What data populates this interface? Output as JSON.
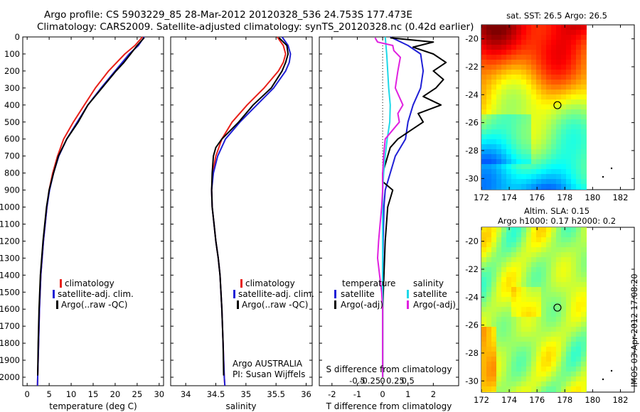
{
  "header": {
    "line1": "Argo profile: CS 5903229_85 28-Mar-2012 20120328_536 24.753S 177.473E",
    "line2": "Climatology: CARS2009. Satellite-adjusted climatology: synTS_20120328.nc (0.42d earlier)"
  },
  "colors": {
    "climatology": "#e8201a",
    "satellite": "#1f1fd6",
    "argo": "#000000",
    "sat_temp": "#1ed8e8",
    "argo_adj_salt": "#e020e0"
  },
  "legends": {
    "temperature": [
      "climatology",
      "satellite-adj. clim.",
      "Argo(..raw -QC)"
    ],
    "salinity": [
      "climatology",
      "satellite-adj. clim.",
      "Argo(..raw -QC)"
    ],
    "difference": {
      "temperature_head": "temperature",
      "salinity_head": "salinity",
      "temperature_items": [
        "satellite",
        "Argo(-adj)"
      ],
      "salinity_items": [
        "satellite",
        "Argo(-adj)"
      ]
    }
  },
  "annotations": {
    "argo_country": "Argo AUSTRALIA",
    "pi": "PI: Susan Wijffels",
    "imos_stamp": "IMOS 03-Apr-2012 17:08:20"
  },
  "maps": {
    "sst_title": "sat. SST: 26.5  Argo: 26.5",
    "sla_title1": "Altim. SLA: 0.15",
    "sla_title2": "Argo h1000: 0.17 h2000: 0.2",
    "xticks": [
      "172",
      "174",
      "176",
      "178",
      "180",
      "182"
    ],
    "yticks": [
      "-20",
      "-22",
      "-24",
      "-26",
      "-28",
      "-30"
    ],
    "float_marker": {
      "lon": 177.47,
      "lat": -24.75
    }
  },
  "chart_data": [
    {
      "type": "line",
      "xlabel": "temperature (deg C)",
      "ylabel": "",
      "xlim": [
        -1,
        31
      ],
      "ylim": [
        2050,
        0
      ],
      "xticks": [
        0,
        5,
        10,
        15,
        20,
        25,
        30
      ],
      "yticks": [
        0,
        100,
        200,
        300,
        400,
        500,
        600,
        700,
        800,
        900,
        1000,
        1100,
        1200,
        1300,
        1400,
        1500,
        1600,
        1700,
        1800,
        1900,
        2000
      ],
      "series": [
        {
          "name": "climatology",
          "depth": [
            0,
            50,
            100,
            200,
            300,
            400,
            500,
            600,
            700,
            800,
            900,
            1000,
            1200,
            1400,
            1600,
            1800,
            2000,
            2050
          ],
          "values": [
            26.2,
            24.5,
            22.2,
            18.5,
            15.5,
            13.0,
            10.5,
            8.3,
            6.9,
            5.8,
            5.0,
            4.5,
            3.7,
            3.1,
            2.8,
            2.6,
            2.4,
            2.35
          ]
        },
        {
          "name": "satellite-adj. clim.",
          "depth": [
            0,
            50,
            100,
            200,
            300,
            400,
            500,
            600,
            700,
            800,
            900,
            1000,
            1200,
            1400,
            1600,
            1800,
            2000,
            2050
          ],
          "values": [
            26.6,
            25.3,
            23.2,
            20.0,
            16.8,
            13.8,
            11.4,
            9.0,
            7.2,
            6.0,
            5.1,
            4.5,
            3.7,
            3.1,
            2.8,
            2.6,
            2.4,
            2.35
          ]
        },
        {
          "name": "Argo(..raw -QC)",
          "depth": [
            5,
            50,
            100,
            150,
            200,
            300,
            400,
            500,
            600,
            700,
            800,
            900,
            1000,
            1200,
            1400,
            1600,
            1800,
            1990
          ],
          "values": [
            26.6,
            25.0,
            23.5,
            22.0,
            20.2,
            17.0,
            13.8,
            11.6,
            9.0,
            7.1,
            6.0,
            5.0,
            4.4,
            3.6,
            3.0,
            2.7,
            2.5,
            2.4
          ]
        }
      ]
    },
    {
      "type": "line",
      "xlabel": "salinity",
      "ylabel": "",
      "xlim": [
        33.75,
        36.1
      ],
      "ylim": [
        2050,
        0
      ],
      "xticks": [
        34,
        34.5,
        35,
        35.5,
        36
      ],
      "series": [
        {
          "name": "climatology",
          "depth": [
            0,
            50,
            100,
            150,
            200,
            300,
            400,
            500,
            600,
            700,
            800,
            900,
            1000,
            1100,
            1200,
            1300,
            1400,
            1600,
            1800,
            2000,
            2050
          ],
          "values": [
            35.52,
            35.62,
            35.66,
            35.62,
            35.54,
            35.3,
            35.02,
            34.77,
            34.6,
            34.5,
            34.45,
            34.43,
            34.44,
            34.47,
            34.5,
            34.54,
            34.57,
            34.6,
            34.62,
            34.64,
            34.65
          ]
        },
        {
          "name": "satellite-adj. clim.",
          "depth": [
            0,
            50,
            100,
            150,
            200,
            300,
            400,
            500,
            600,
            700,
            800,
            900,
            1000,
            1100,
            1200,
            1300,
            1400,
            1600,
            1800,
            2000,
            2050
          ],
          "values": [
            35.6,
            35.7,
            35.74,
            35.72,
            35.66,
            35.46,
            35.18,
            34.9,
            34.66,
            34.53,
            34.46,
            34.43,
            34.44,
            34.47,
            34.5,
            34.54,
            34.57,
            34.6,
            34.62,
            34.64,
            34.65
          ]
        },
        {
          "name": "Argo(..raw -QC)",
          "depth": [
            5,
            50,
            100,
            150,
            200,
            300,
            400,
            500,
            600,
            650,
            700,
            800,
            900,
            1000,
            1100,
            1200,
            1300,
            1400,
            1600,
            1800,
            1990
          ],
          "values": [
            35.55,
            35.68,
            35.7,
            35.66,
            35.6,
            35.42,
            35.12,
            34.88,
            34.6,
            34.5,
            34.46,
            34.44,
            34.43,
            34.44,
            34.47,
            34.5,
            34.54,
            34.57,
            34.6,
            34.62,
            34.63
          ]
        }
      ]
    },
    {
      "type": "line",
      "xlabel": "T difference from climatology",
      "ylabel": "",
      "xlim": [
        -2.5,
        3.0
      ],
      "ylim": [
        2050,
        0
      ],
      "xticks": [
        -2,
        -1,
        0,
        1,
        2
      ],
      "secondary_axis": {
        "label": "S difference from climatology",
        "ticks": [
          -0.5,
          -0.25,
          0,
          0.25,
          0.5
        ]
      },
      "series": [
        {
          "name": "temperature satellite",
          "depth": [
            0,
            50,
            100,
            200,
            300,
            400,
            500,
            600,
            700,
            800,
            900,
            1000,
            1200,
            1400,
            1600,
            1800,
            2000
          ],
          "values": [
            0.3,
            1.0,
            1.5,
            1.6,
            1.5,
            1.2,
            1.0,
            0.9,
            0.5,
            0.3,
            0.1,
            0.05,
            0.02,
            0.0,
            0.0,
            0.0,
            0.0
          ]
        },
        {
          "name": "temperature Argo(-adj)",
          "depth": [
            5,
            30,
            60,
            100,
            150,
            200,
            250,
            300,
            350,
            400,
            450,
            500,
            550,
            600,
            650,
            700,
            750,
            800,
            850,
            900,
            1000,
            1200,
            1400,
            1600,
            1800,
            2000
          ],
          "values": [
            0.3,
            2.0,
            1.2,
            2.0,
            2.5,
            2.0,
            2.4,
            2.1,
            1.6,
            2.3,
            1.4,
            1.6,
            1.1,
            0.6,
            0.3,
            0.2,
            0.1,
            0.0,
            0.0,
            0.4,
            0.2,
            0.1,
            0.05,
            0.0,
            0.0,
            0.0
          ]
        },
        {
          "name": "salinity satellite",
          "depth": [
            0,
            100,
            200,
            300,
            400,
            500,
            600,
            700,
            800,
            900,
            1000,
            1200,
            1400,
            1600,
            1800,
            2000
          ],
          "values": [
            0.05,
            0.08,
            0.1,
            0.12,
            0.15,
            0.14,
            0.09,
            0.05,
            0.02,
            0.0,
            0.0,
            0.0,
            0.0,
            0.0,
            0.0,
            0.0
          ]
        },
        {
          "name": "salinity Argo(-adj)",
          "depth": [
            5,
            30,
            50,
            80,
            120,
            200,
            300,
            400,
            450,
            500,
            600,
            700,
            800,
            900,
            1000,
            1100,
            1200,
            1300,
            1400,
            1500,
            1600,
            1800,
            2000
          ],
          "values": [
            -0.15,
            -0.1,
            0.2,
            0.22,
            0.35,
            0.3,
            0.25,
            0.4,
            0.3,
            0.33,
            0.05,
            0.02,
            0.0,
            0.0,
            -0.02,
            -0.05,
            -0.08,
            -0.1,
            -0.06,
            -0.02,
            0.0,
            0.0,
            0.0
          ]
        }
      ]
    },
    {
      "type": "heatmap",
      "title": "sat. SST: 26.5  Argo: 26.5",
      "xlim": [
        172,
        183
      ],
      "ylim": [
        -30.8,
        -19.0
      ],
      "z_description": "sea surface temperature"
    },
    {
      "type": "heatmap",
      "title": "Altim. SLA: 0.15",
      "xlim": [
        172,
        183
      ],
      "ylim": [
        -30.8,
        -19.0
      ],
      "z_description": "sea level anomaly"
    }
  ]
}
